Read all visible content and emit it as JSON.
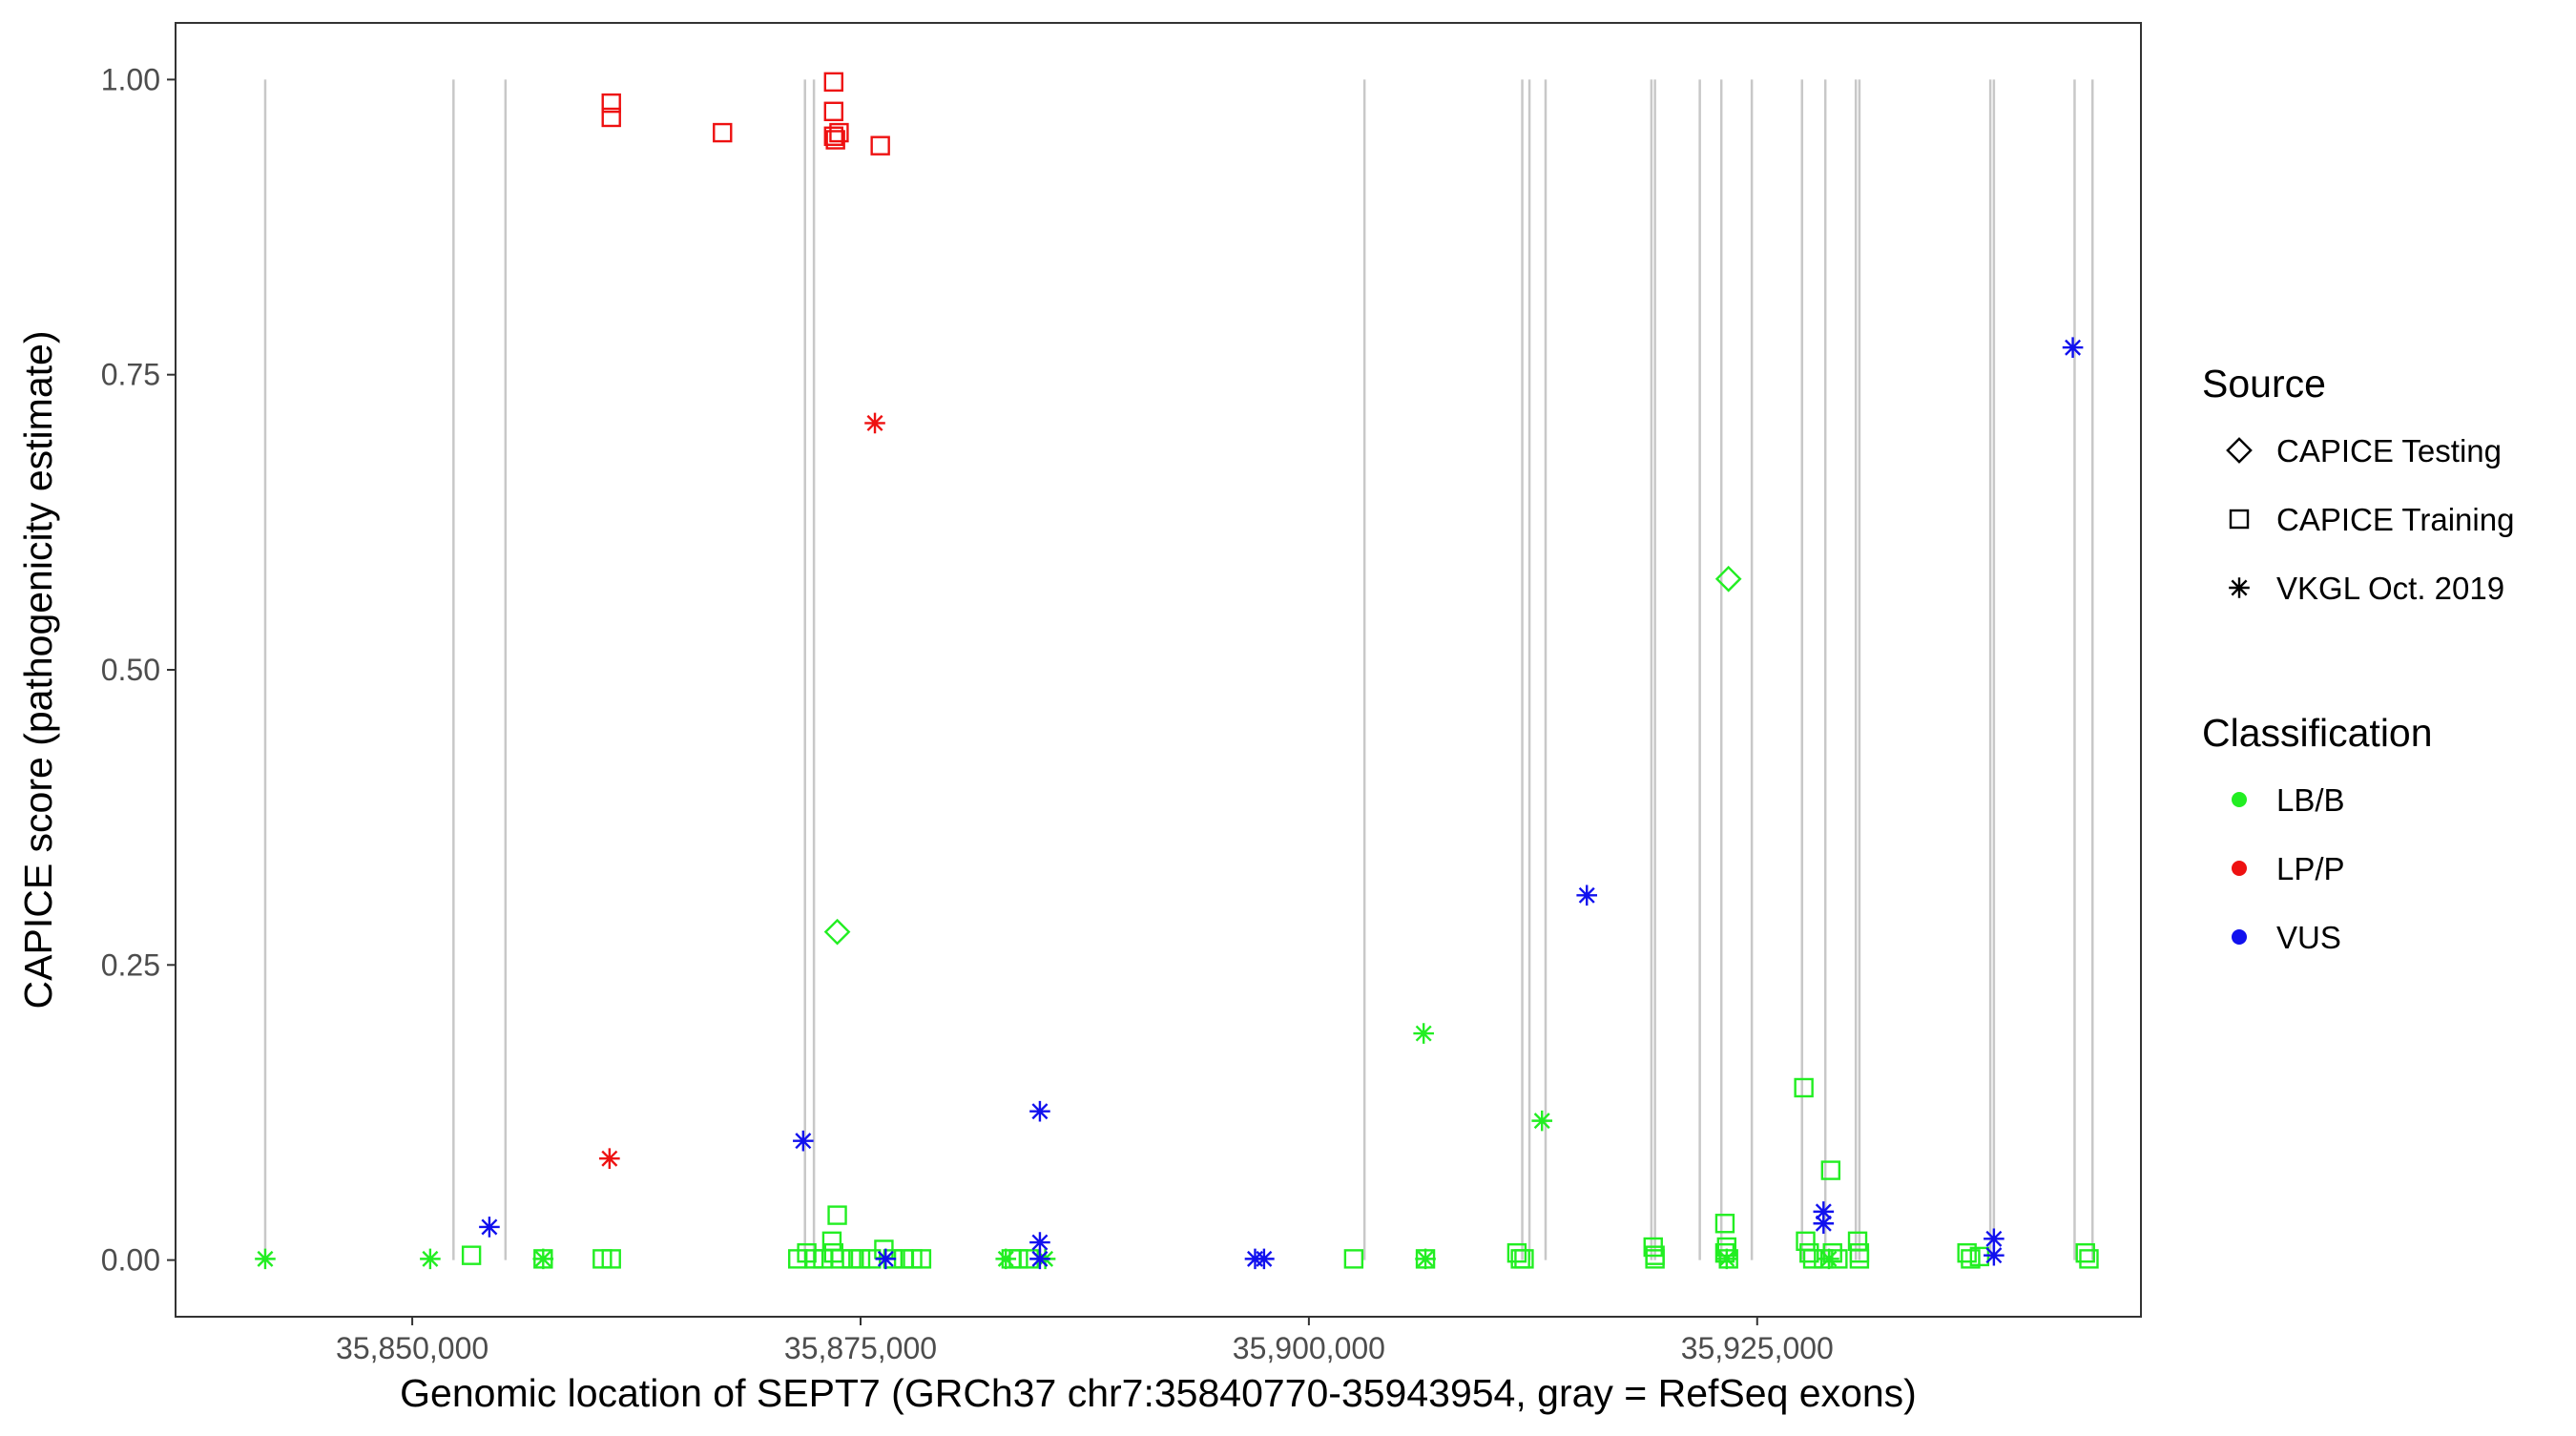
{
  "chart_data": {
    "type": "scatter",
    "title": "",
    "xlabel": "Genomic location of SEPT7 (GRCh37 chr7:35840770-35943954, gray = RefSeq exons)",
    "ylabel": "CAPICE score (pathogenicity estimate)",
    "xlim": [
      35836800,
      35946400
    ],
    "ylim": [
      -0.048,
      1.048
    ],
    "x_ticks": [
      35850000,
      35875000,
      35900000,
      35925000
    ],
    "x_tick_labels": [
      "35,850,000",
      "35,875,000",
      "35,900,000",
      "35,925,000"
    ],
    "y_ticks": [
      0,
      0.25,
      0.5,
      0.75,
      1
    ],
    "y_tick_labels": [
      "0.00",
      "0.25",
      "0.50",
      "0.75",
      "1.00"
    ],
    "grid": false,
    "exon_lines": [
      35841800,
      35852300,
      35855200,
      35871900,
      35872400,
      35903100,
      35911900,
      35912300,
      35913200,
      35919100,
      35919300,
      35921800,
      35923000,
      35924700,
      35927500,
      35928800,
      35930500,
      35930700,
      35938000,
      35938200,
      35942700,
      35943700
    ],
    "legend": {
      "placement": "right",
      "shape_title": "Source",
      "shapes": [
        {
          "label": "CAPICE Testing",
          "shape": "diamond"
        },
        {
          "label": "CAPICE Training",
          "shape": "square"
        },
        {
          "label": "VKGL Oct. 2019",
          "shape": "asterisk"
        }
      ],
      "color_title": "Classification",
      "colors": [
        {
          "label": "LB/B",
          "color": "#22ee22"
        },
        {
          "label": "LP/P",
          "color": "#ee1111"
        },
        {
          "label": "VUS",
          "color": "#1111ee"
        }
      ]
    },
    "series": [
      {
        "source": "CAPICE Testing",
        "classification": "LB/B",
        "points": [
          [
            35873700,
            0.278
          ],
          [
            35923400,
            0.577
          ]
        ]
      },
      {
        "source": "CAPICE Training",
        "classification": "LP/P",
        "points": [
          [
            35861100,
            0.98
          ],
          [
            35861100,
            0.968
          ],
          [
            35867300,
            0.955
          ],
          [
            35873500,
            0.998
          ],
          [
            35873500,
            0.973
          ],
          [
            35873500,
            0.952
          ],
          [
            35873800,
            0.955
          ],
          [
            35873600,
            0.949
          ],
          [
            35876100,
            0.944
          ]
        ]
      },
      {
        "source": "CAPICE Training",
        "classification": "LB/B",
        "points": [
          [
            35853300,
            0.004
          ],
          [
            35857300,
            0.001
          ],
          [
            35860600,
            0.001
          ],
          [
            35861100,
            0.001
          ],
          [
            35871500,
            0.001
          ],
          [
            35872000,
            0.006
          ],
          [
            35872400,
            0.001
          ],
          [
            35872900,
            0.001
          ],
          [
            35873400,
            0.016
          ],
          [
            35873500,
            0.006
          ],
          [
            35873700,
            0.038
          ],
          [
            35873900,
            0.001
          ],
          [
            35874500,
            0.001
          ],
          [
            35875000,
            0.001
          ],
          [
            35875600,
            0.001
          ],
          [
            35876300,
            0.009
          ],
          [
            35876800,
            0.001
          ],
          [
            35877400,
            0.001
          ],
          [
            35877900,
            0.001
          ],
          [
            35878400,
            0.001
          ],
          [
            35883400,
            0.001
          ],
          [
            35883800,
            0.001
          ],
          [
            35884400,
            0.001
          ],
          [
            35902500,
            0.001
          ],
          [
            35906500,
            0.001
          ],
          [
            35911600,
            0.006
          ],
          [
            35911800,
            0.001
          ],
          [
            35912000,
            0.001
          ],
          [
            35919200,
            0.011
          ],
          [
            35919300,
            0.004
          ],
          [
            35919300,
            0.001
          ],
          [
            35923200,
            0.031
          ],
          [
            35923300,
            0.011
          ],
          [
            35923200,
            0.006
          ],
          [
            35923400,
            0.001
          ],
          [
            35927600,
            0.146
          ],
          [
            35927700,
            0.016
          ],
          [
            35927900,
            0.006
          ],
          [
            35928100,
            0.001
          ],
          [
            35928700,
            0.001
          ],
          [
            35929100,
            0.076
          ],
          [
            35929200,
            0.006
          ],
          [
            35929500,
            0.001
          ],
          [
            35930600,
            0.016
          ],
          [
            35930700,
            0.006
          ],
          [
            35930700,
            0.001
          ],
          [
            35936700,
            0.006
          ],
          [
            35936900,
            0.001
          ],
          [
            35937400,
            0.003
          ],
          [
            35943300,
            0.006
          ],
          [
            35943500,
            0.001
          ]
        ]
      },
      {
        "source": "VKGL Oct. 2019",
        "classification": "LB/B",
        "points": [
          [
            35841800,
            0.001
          ],
          [
            35851000,
            0.001
          ],
          [
            35857300,
            0.001
          ],
          [
            35883100,
            0.001
          ],
          [
            35885300,
            0.001
          ],
          [
            35906400,
            0.192
          ],
          [
            35906500,
            0.001
          ],
          [
            35913000,
            0.118
          ],
          [
            35923300,
            0.001
          ],
          [
            35929000,
            0.001
          ]
        ]
      },
      {
        "source": "VKGL Oct. 2019",
        "classification": "LP/P",
        "points": [
          [
            35861000,
            0.086
          ],
          [
            35875800,
            0.709
          ]
        ]
      },
      {
        "source": "VKGL Oct. 2019",
        "classification": "VUS",
        "points": [
          [
            35854300,
            0.028
          ],
          [
            35871800,
            0.101
          ],
          [
            35876400,
            0.001
          ],
          [
            35885000,
            0.126
          ],
          [
            35885000,
            0.015
          ],
          [
            35885000,
            0.001
          ],
          [
            35897000,
            0.001
          ],
          [
            35897500,
            0.001
          ],
          [
            35915500,
            0.309
          ],
          [
            35928700,
            0.041
          ],
          [
            35928700,
            0.031
          ],
          [
            35938200,
            0.018
          ],
          [
            35938200,
            0.004
          ],
          [
            35942600,
            0.773
          ]
        ]
      }
    ]
  }
}
